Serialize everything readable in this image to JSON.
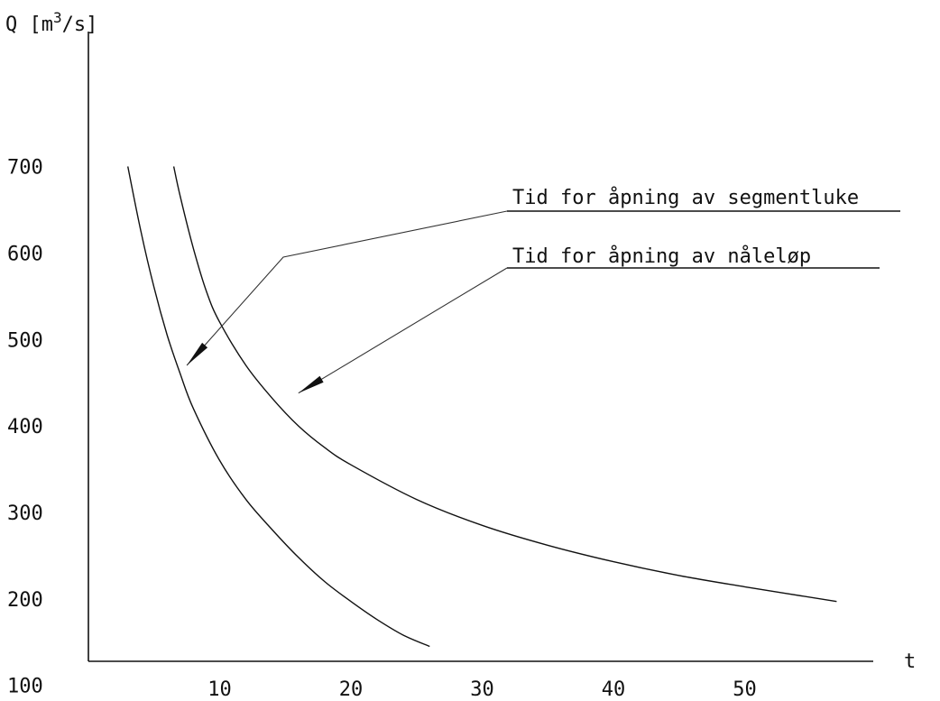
{
  "chart_data": {
    "type": "line",
    "title": "",
    "ylabel": "Q [m³/s]",
    "xlabel": "t",
    "xlim": [
      0,
      60
    ],
    "ylim": [
      0,
      750
    ],
    "x_ticks": [
      "10",
      "20",
      "30",
      "40",
      "50"
    ],
    "x_tick_values": [
      10,
      20,
      30,
      40,
      50
    ],
    "y_ticks": [
      "700",
      "600",
      "500",
      "400",
      "300",
      "200",
      "100"
    ],
    "y_tick_values": [
      700,
      600,
      500,
      400,
      300,
      200,
      100
    ],
    "grid": false,
    "series": [
      {
        "x": [
          3,
          4,
          5,
          6,
          7,
          8,
          10,
          12,
          14,
          16,
          18,
          20,
          22,
          24,
          26
        ],
        "y": [
          700,
          625,
          560,
          505,
          460,
          420,
          360,
          315,
          280,
          248,
          220,
          197,
          176,
          158,
          145
        ]
      },
      {
        "x": [
          6.5,
          7,
          8,
          9,
          10,
          12,
          14,
          16,
          18,
          20,
          25,
          30,
          35,
          40,
          45,
          50,
          57
        ],
        "y": [
          700,
          665,
          605,
          555,
          520,
          470,
          432,
          400,
          375,
          355,
          315,
          285,
          262,
          243,
          227,
          214,
          197
        ]
      }
    ],
    "annotations": [
      {
        "text": "Tid for åpning av segmentluke",
        "points_to": {
          "x": 7.5,
          "y": 470
        }
      },
      {
        "text": "Tid for åpning av nåleløp",
        "points_to": {
          "x": 16,
          "y": 438
        }
      }
    ]
  }
}
